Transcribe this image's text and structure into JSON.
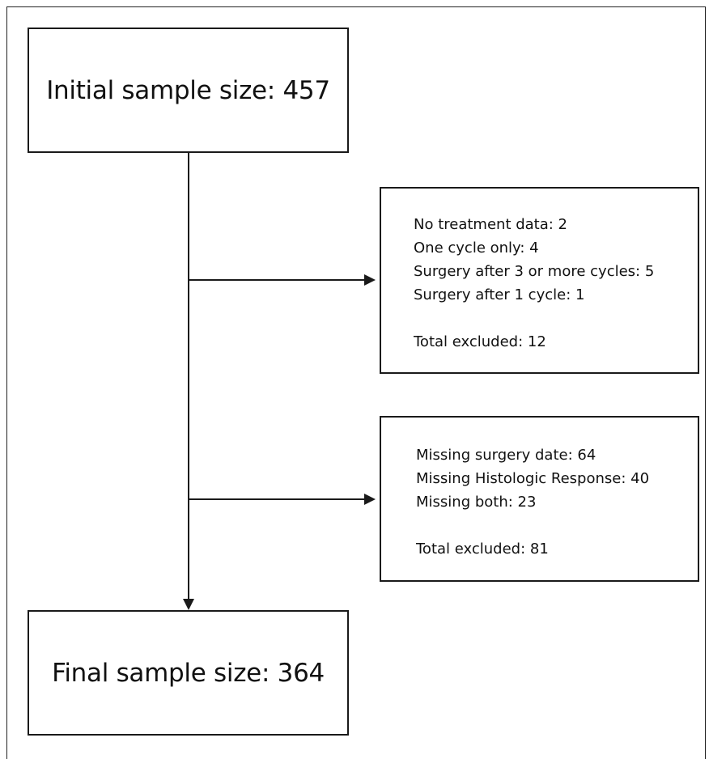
{
  "diagram": {
    "initial_box": {
      "label": "Initial sample size: 457"
    },
    "exclusion_box_1": {
      "items": [
        "No treatment data: 2",
        "One cycle only: 4",
        "Surgery after 3 or more cycles: 5",
        "Surgery after 1 cycle:  1"
      ],
      "total": "Total excluded: 12"
    },
    "exclusion_box_2": {
      "items": [
        "Missing surgery date: 64",
        "Missing Histologic Response: 40",
        "Missing both: 23"
      ],
      "total": "Total excluded: 81"
    },
    "final_box": {
      "label": "Final sample size: 364"
    }
  }
}
